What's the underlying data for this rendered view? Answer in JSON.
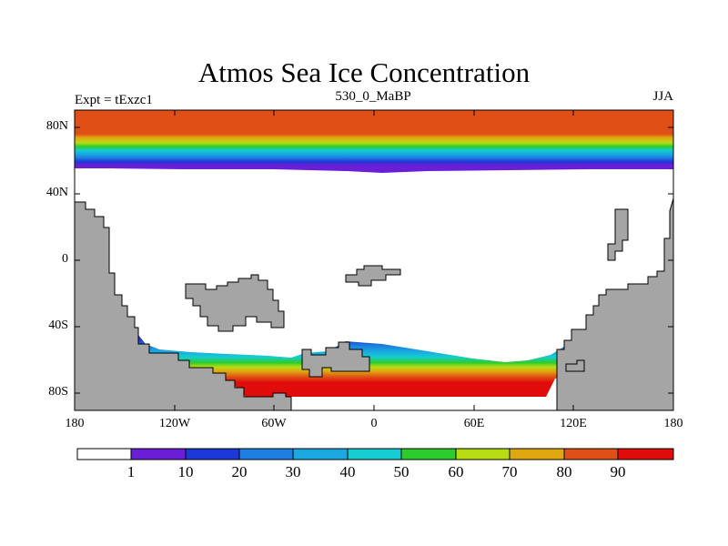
{
  "title": "Atmos Sea Ice Concentration",
  "subtitle_left": "Expt = tExzc1",
  "subtitle_center": "530_0_MaBP",
  "subtitle_right": "JJA",
  "y_labels": [
    "80N",
    "40N",
    "0",
    "40S",
    "80S"
  ],
  "x_labels": [
    "180",
    "120W",
    "60W",
    "0",
    "60E",
    "120E",
    "180"
  ],
  "colorbar": {
    "labels": [
      "1",
      "10",
      "20",
      "30",
      "40",
      "50",
      "60",
      "70",
      "80",
      "90"
    ],
    "colors": [
      "#ffffff",
      "#6a1fd6",
      "#1d38d8",
      "#1f7fe0",
      "#19a8e0",
      "#15cdd0",
      "#2ccc2c",
      "#b7dc12",
      "#e0a810",
      "#e05016",
      "#e00c0c"
    ]
  },
  "land_color": "#a5a5a5"
}
